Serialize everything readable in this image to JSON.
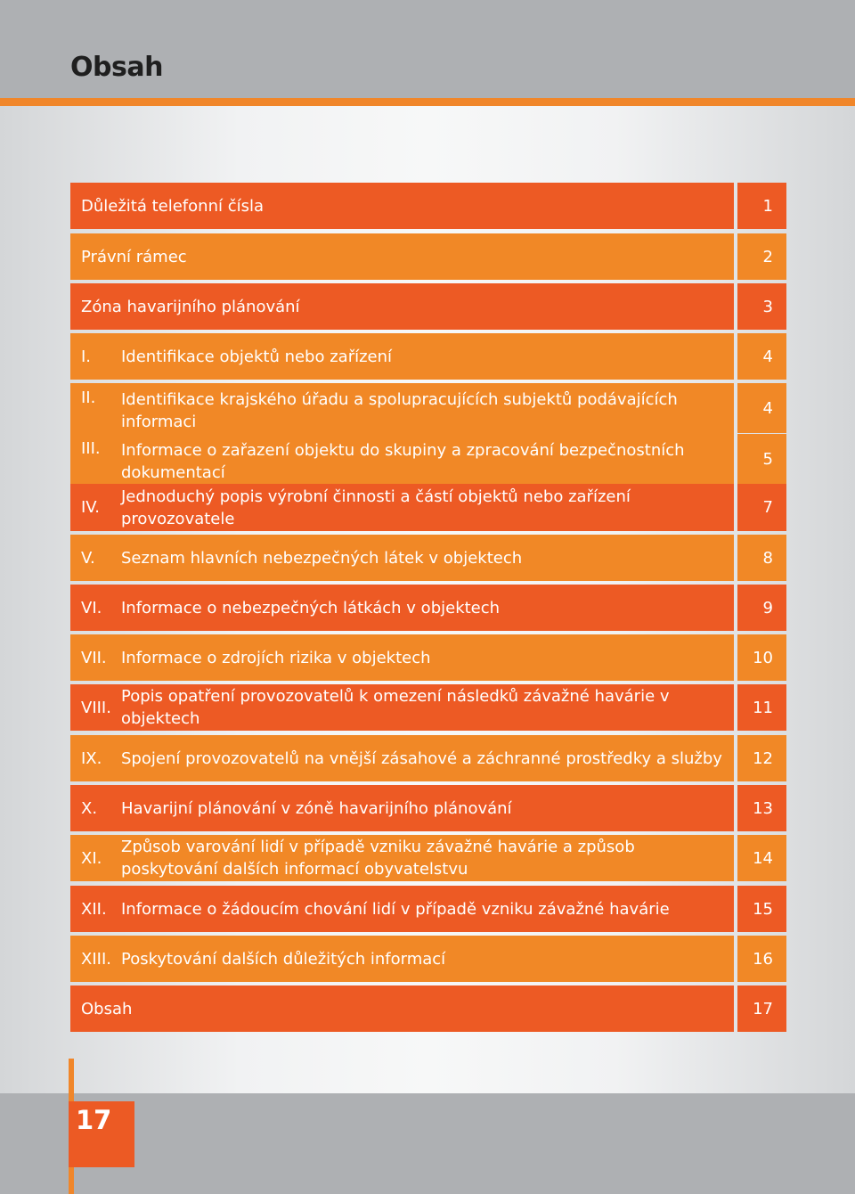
{
  "header": {
    "title": "Obsah"
  },
  "toc": {
    "entries": [
      {
        "numeral": "",
        "title": "Důležitá telefonní čísla",
        "page": "1"
      },
      {
        "numeral": "",
        "title": "Právní rámec",
        "page": "2"
      },
      {
        "numeral": "",
        "title": "Zóna havarijního plánování",
        "page": "3"
      },
      {
        "numeral": "I.",
        "title": "Identifikace objektů nebo zařízení",
        "page": "4"
      },
      {
        "numeral": "II.",
        "title": "Identifikace krajského úřadu a spolupracujících subjektů podávajících informaci",
        "page": "4"
      },
      {
        "numeral": "III.",
        "title": "Informace o zařazení objektu do skupiny a zpracování bezpečnostních dokumentací",
        "page": "5"
      },
      {
        "numeral": "IV.",
        "title": "Jednoduchý popis výrobní činnosti a částí objektů nebo zařízení provozovatele",
        "page": "7"
      },
      {
        "numeral": "V.",
        "title": "Seznam hlavních nebezpečných látek v objektech",
        "page": "8"
      },
      {
        "numeral": "VI.",
        "title": "Informace o nebezpečných látkách v objektech",
        "page": "9"
      },
      {
        "numeral": "VII.",
        "title": "Informace o zdrojích rizika v objektech",
        "page": "10"
      },
      {
        "numeral": "VIII.",
        "title": "Popis opatření provozovatelů k omezení následků závažné havárie v objektech",
        "page": "11"
      },
      {
        "numeral": "IX.",
        "title": "Spojení provozovatelů na vnější zásahové a záchranné prostředky a služby",
        "page": "12"
      },
      {
        "numeral": "X.",
        "title": "Havarijní plánování v zóně havarijního plánování",
        "page": "13"
      },
      {
        "numeral": "XI.",
        "title": "Způsob varování lidí v případě vzniku závažné havárie a způsob poskytování dalších informací obyvatelstvu",
        "page": "14"
      },
      {
        "numeral": "XII.",
        "title": "Informace o žádoucím chování lidí v případě vzniku závažné havárie",
        "page": "15"
      },
      {
        "numeral": "XIII.",
        "title": "Poskytování dalších důležitých informací",
        "page": "16"
      },
      {
        "numeral": "",
        "title": "Obsah",
        "page": "17"
      }
    ]
  },
  "footer": {
    "page_number": "17"
  },
  "colors": {
    "accent_red_orange": "#ed5a24",
    "accent_orange": "#f18826",
    "header_gray": "#aeb0b3"
  }
}
